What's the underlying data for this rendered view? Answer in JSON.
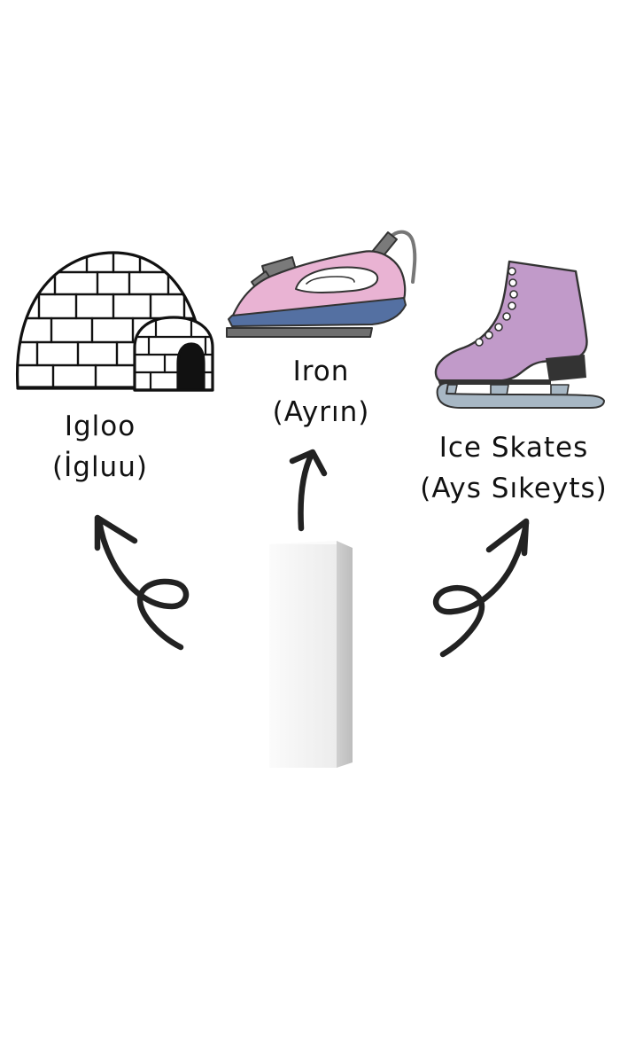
{
  "items": [
    {
      "key": "igloo",
      "word": "Igloo",
      "pronunciation": "(İgluu)"
    },
    {
      "key": "iron",
      "word": "Iron",
      "pronunciation": "(Ayrın)"
    },
    {
      "key": "skates",
      "word": "Ice Skates",
      "pronunciation": "(Ays Sıkeyts)"
    }
  ],
  "colors": {
    "ink": "#111111",
    "iron_body": "#e9b3d3",
    "iron_base": "#5470a2",
    "iron_plate": "#6f6f6f",
    "skate_boot": "#c19ac9",
    "skate_heel": "#333333",
    "skate_blade": "#a7b7c4",
    "ice_block": "#f2f2f2"
  },
  "icons": [
    "igloo-icon",
    "iron-icon",
    "ice-skate-icon",
    "ice-block-icon",
    "arrow-icon"
  ]
}
